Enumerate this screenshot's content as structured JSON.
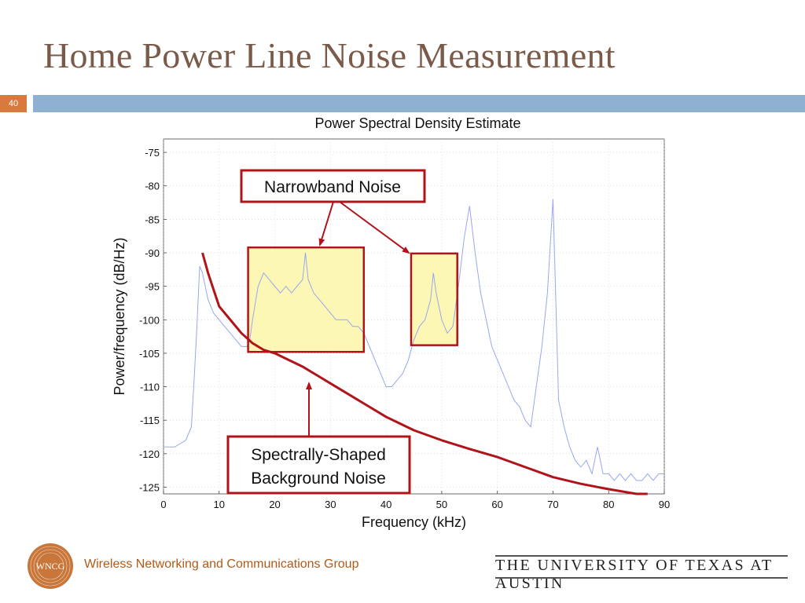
{
  "slide": {
    "title": "Home Power Line Noise Measurement",
    "number": "40"
  },
  "footer": {
    "logo_text": "WNCG",
    "group": "Wireless Networking and Communications Group",
    "university": "THE UNIVERSITY OF TEXAS AT AUSTIN"
  },
  "colors": {
    "title": "#7a5a48",
    "accent_orange": "#d8793d",
    "bar_blue": "#8fb1d1",
    "psd_line": "#9aa6f0",
    "background_curve": "#b0141a",
    "annotation_border": "#b0141a",
    "highlight_fill": "#fbf6a8"
  },
  "chart_data": {
    "type": "line",
    "title": "Power Spectral Density Estimate",
    "xlabel": "Frequency (kHz)",
    "ylabel": "Power/frequency (dB/Hz)",
    "xlim": [
      0,
      90
    ],
    "ylim": [
      -126,
      -73
    ],
    "xticks": [
      0,
      10,
      20,
      30,
      40,
      50,
      60,
      70,
      80,
      90
    ],
    "yticks": [
      -75,
      -80,
      -85,
      -90,
      -95,
      -100,
      -105,
      -110,
      -115,
      -120,
      -125
    ],
    "grid": true,
    "series": [
      {
        "role": "psd",
        "x": [
          0,
          2,
          4,
          5,
          5.5,
          6,
          6.5,
          7,
          7.5,
          8,
          9,
          10,
          11,
          12,
          13,
          14,
          15,
          15.5,
          16,
          17,
          18,
          19,
          20,
          21,
          22,
          23,
          24,
          25,
          25.5,
          26,
          27,
          28,
          29,
          30,
          31,
          32,
          33,
          34,
          35,
          36,
          37,
          38,
          39,
          40,
          41,
          42,
          43,
          44,
          45,
          46,
          47,
          48,
          48.5,
          49,
          50,
          51,
          52,
          53,
          54,
          55,
          56,
          57,
          58,
          59,
          60,
          61,
          62,
          63,
          64,
          65,
          66,
          67,
          68,
          69,
          70,
          71,
          72,
          73,
          74,
          75,
          76,
          77,
          78,
          79,
          80,
          81,
          82,
          83,
          84,
          85,
          86,
          87,
          88,
          89,
          90
        ],
        "y": [
          -119,
          -119,
          -118,
          -116,
          -109,
          -101,
          -92,
          -93,
          -95,
          -97,
          -99,
          -100,
          -101,
          -102,
          -103,
          -104,
          -104,
          -103,
          -100,
          -95,
          -93,
          -94,
          -95,
          -96,
          -95,
          -96,
          -95,
          -94,
          -90,
          -94,
          -96,
          -97,
          -98,
          -99,
          -100,
          -100,
          -100,
          -101,
          -101,
          -102,
          -104,
          -106,
          -108,
          -110,
          -110,
          -109,
          -108,
          -106,
          -103,
          -101,
          -100,
          -97,
          -93,
          -96,
          -100,
          -102,
          -101,
          -95,
          -88,
          -83,
          -90,
          -96,
          -100,
          -104,
          -106,
          -108,
          -110,
          -112,
          -113,
          -115,
          -116,
          -110,
          -104,
          -96,
          -82,
          -112,
          -116,
          -119,
          -121,
          -122,
          -121,
          -123,
          -119,
          -123,
          -123,
          -124,
          -123,
          -124,
          -123,
          -124,
          -124,
          -123,
          -124,
          -123,
          -123
        ]
      },
      {
        "role": "background",
        "x": [
          7,
          8,
          10,
          12,
          14,
          16,
          18,
          20,
          22,
          25,
          28,
          30,
          33,
          36,
          40,
          45,
          50,
          55,
          60,
          65,
          70,
          75,
          80,
          85,
          87
        ],
        "y": [
          -90,
          -93,
          -98,
          -100,
          -102,
          -103.5,
          -104.5,
          -105,
          -105.8,
          -107,
          -108.5,
          -109.5,
          -111,
          -112.5,
          -114.5,
          -116.5,
          -118,
          -119.3,
          -120.5,
          -122,
          -123.5,
          -124.5,
          -125.3,
          -126,
          -126
        ]
      }
    ],
    "annotations": [
      {
        "label_lines": [
          "Narrowband Noise"
        ]
      },
      {
        "label_lines": [
          "Spectrally-Shaped",
          "Background Noise"
        ]
      }
    ]
  }
}
